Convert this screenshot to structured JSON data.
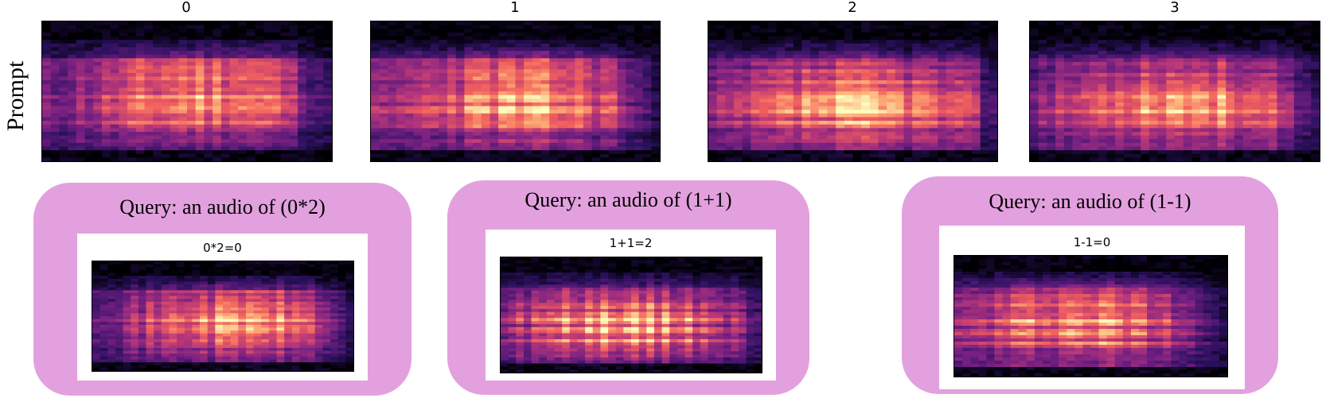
{
  "prompt_row": {
    "label": "Prompt",
    "items": [
      {
        "title": "0"
      },
      {
        "title": "1"
      },
      {
        "title": "2"
      },
      {
        "title": "3"
      }
    ]
  },
  "queries": [
    {
      "label": "Query: an audio of (0*2)",
      "result_title": "0*2=0"
    },
    {
      "label": "Query: an audio of (1+1)",
      "result_title": "1+1=2"
    },
    {
      "label": "Query: an audio of (1-1)",
      "result_title": "1-1=0"
    }
  ],
  "colors": {
    "card_fill": "#e3a0de",
    "colormap": [
      "#000004",
      "#2c115f",
      "#721f81",
      "#b73779",
      "#f1605d",
      "#feb078",
      "#fcfdbf"
    ]
  },
  "icons": {
    "spectrogram": "magma-spectrogram-image"
  }
}
